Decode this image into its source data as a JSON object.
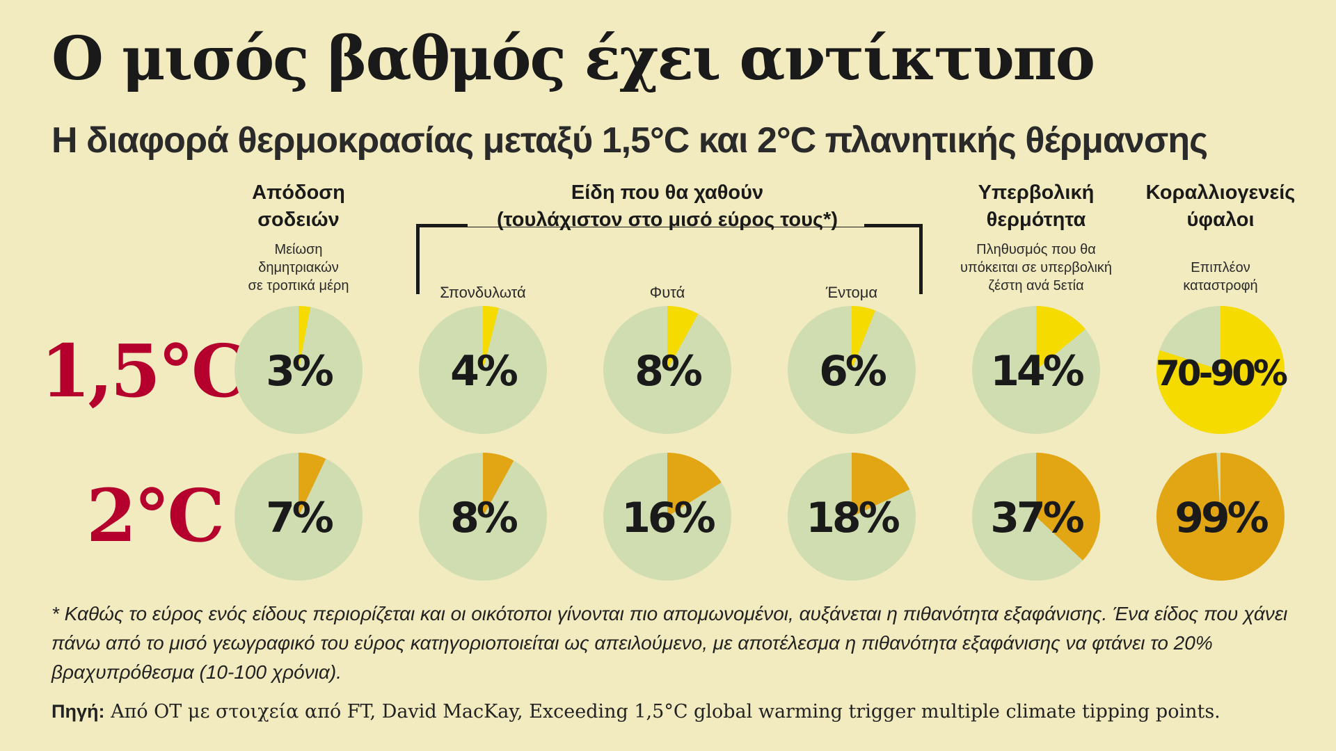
{
  "title": "Ο μισός βαθμός έχει αντίκτυπο",
  "subtitle": "Η διαφορά θερμοκρασίας μεταξύ 1,5°C και 2°C πλανητικής θέρμανσης",
  "columns": {
    "crop": {
      "head_1": "Απόδοση",
      "head_2": "σοδειών",
      "sub_1": "Μείωση",
      "sub_2": "δημητριακών",
      "sub_3": "σε τροπικά μέρη"
    },
    "species": {
      "head_1": "Είδη που θα χαθούν",
      "head_2": "(τουλάχιστον στο μισό εύρος τους*)"
    },
    "vertebrates": {
      "label": "Σπονδυλωτά"
    },
    "plants": {
      "label": "Φυτά"
    },
    "insects": {
      "label": "Έντομα"
    },
    "heat": {
      "head_1": "Υπερβολική",
      "head_2": "θερμότητα",
      "sub_1": "Πληθυσμός που θα",
      "sub_2": "υπόκειται σε υπερβολική",
      "sub_3": "ζέστη ανά 5ετία"
    },
    "coral": {
      "head_1": "Κοραλλιογενείς",
      "head_2": "ύφαλοι",
      "sub_1": "Επιπλέον",
      "sub_2": "καταστροφή"
    }
  },
  "rows": {
    "r15": "1,5°C",
    "r20": "2°C"
  },
  "colors": {
    "background": "#f1ebbf",
    "pie_base": "#cfddb0",
    "yellow_15": "#f6db00",
    "orange_20": "#e2a514",
    "row_label": "#b5002e"
  },
  "chart_data": {
    "type": "pie",
    "categories": [
      "Απόδοση σοδειών",
      "Σπονδυλωτά",
      "Φυτά",
      "Έντομα",
      "Υπερβολική θερμότητα",
      "Κοραλλιογενείς ύφαλοι"
    ],
    "series": [
      {
        "name": "1,5°C",
        "values": [
          3,
          4,
          8,
          6,
          14,
          80
        ],
        "labels": [
          "3%",
          "4%",
          "8%",
          "6%",
          "14%",
          "70-90%"
        ]
      },
      {
        "name": "2°C",
        "values": [
          7,
          8,
          16,
          18,
          37,
          99
        ],
        "labels": [
          "7%",
          "8%",
          "16%",
          "18%",
          "37%",
          "99%"
        ]
      }
    ]
  },
  "footnote": "* Καθώς το εύρος ενός είδους περιορίζεται και οι οικότοποι γίνονται πιο απομωνομένοι, αυξάνεται η πιθανότητα εξαφάνισης. Ένα είδος που χάνει πάνω από το μισό γεωγραφικό του εύρος κατηγοριοποιείται ως απειλούμενο, με αποτέλεσμα η πιθανότητα εξαφάνισης να φτάνει το 20% βραχυπρόθεσμα (10-100 χρόνια).",
  "source": {
    "label": "Πηγή:",
    "text": " Από ΟΤ με στοιχεία από FT, David MacKay, Exceeding 1,5°C global warming trigger multiple climate tipping points."
  }
}
